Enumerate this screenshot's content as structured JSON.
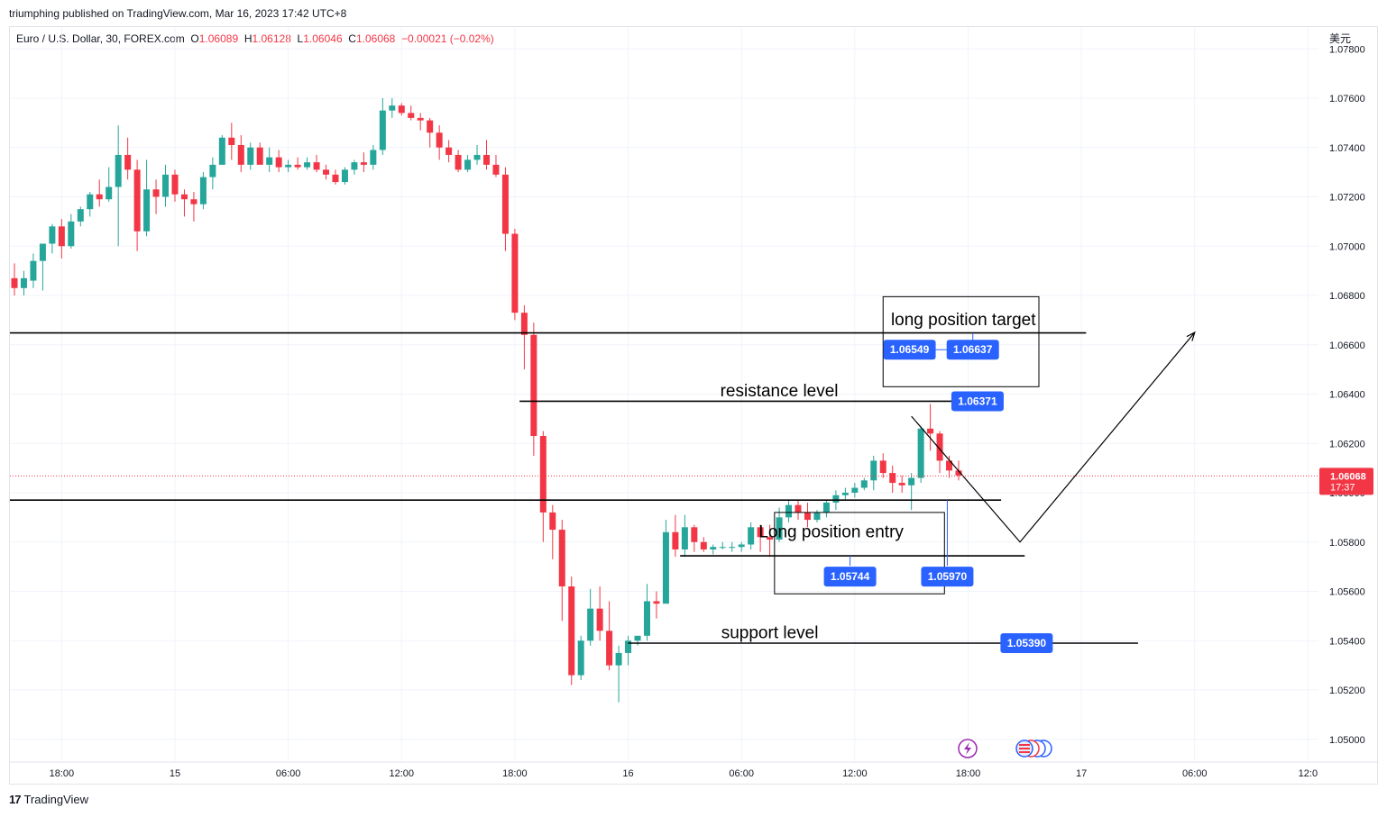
{
  "publisher_line": "triumphing published on TradingView.com, Mar 16, 2023 17:42 UTC+8",
  "legend": {
    "symbol": "Euro / U.S. Dollar, 30, FOREX.com",
    "open_label": "O",
    "open": "1.06089",
    "high_label": "H",
    "high": "1.06128",
    "low_label": "L",
    "low": "1.06046",
    "close_label": "C",
    "close": "1.06068",
    "change": "−0.00021 (−0.02%)"
  },
  "currency": "美元",
  "footer": {
    "brand": "TradingView",
    "logo_icon": "tradingview-logo-icon"
  },
  "colors": {
    "up": "#26a69a",
    "down": "#f23645",
    "label_bg": "#2962ff",
    "price_tag": "#f23645",
    "grid": "#f0f3fa",
    "axis_text": "#131722"
  },
  "chart_data": {
    "type": "candlestick",
    "symbol": "EURUSD",
    "interval": "30",
    "y_axis": {
      "range": [
        1.0494,
        1.0782
      ],
      "ticks": [
        "1.07800",
        "1.07600",
        "1.07400",
        "1.07200",
        "1.07000",
        "1.06800",
        "1.06600",
        "1.06400",
        "1.06200",
        "1.06000",
        "1.05800",
        "1.05600",
        "1.05400",
        "1.05200",
        "1.05000"
      ]
    },
    "x_axis": {
      "start_time": "14 15:30",
      "bar_minutes": 30,
      "tick_labels": [
        {
          "label": "18:00",
          "bar": 5
        },
        {
          "label": "15",
          "bar": 17
        },
        {
          "label": "06:00",
          "bar": 29
        },
        {
          "label": "12:00",
          "bar": 41
        },
        {
          "label": "18:00",
          "bar": 53
        },
        {
          "label": "16",
          "bar": 65
        },
        {
          "label": "06:00",
          "bar": 77
        },
        {
          "label": "12:00",
          "bar": 89
        },
        {
          "label": "18:00",
          "bar": 101
        },
        {
          "label": "17",
          "bar": 113
        },
        {
          "label": "06:00",
          "bar": 125
        },
        {
          "label": "12:0",
          "bar": 137
        }
      ]
    },
    "candles": [
      [
        1.0687,
        1.0693,
        1.068,
        1.0683
      ],
      [
        1.0683,
        1.069,
        1.068,
        1.0687
      ],
      [
        1.0686,
        1.0697,
        1.0683,
        1.0694
      ],
      [
        1.0694,
        1.07,
        1.0682,
        1.0701
      ],
      [
        1.0701,
        1.0709,
        1.0697,
        1.0708
      ],
      [
        1.0708,
        1.0711,
        1.0695,
        1.07
      ],
      [
        1.07,
        1.0713,
        1.0699,
        1.071
      ],
      [
        1.071,
        1.0716,
        1.0708,
        1.0715
      ],
      [
        1.0715,
        1.0722,
        1.0712,
        1.0721
      ],
      [
        1.0721,
        1.0727,
        1.0716,
        1.0719
      ],
      [
        1.0719,
        1.0732,
        1.0718,
        1.0724
      ],
      [
        1.0724,
        1.0749,
        1.07,
        1.0737
      ],
      [
        1.0737,
        1.0744,
        1.0727,
        1.0731
      ],
      [
        1.0731,
        1.0735,
        1.0698,
        1.0706
      ],
      [
        1.0706,
        1.0735,
        1.0704,
        1.0723
      ],
      [
        1.0723,
        1.0727,
        1.0713,
        1.072
      ],
      [
        1.072,
        1.0733,
        1.0716,
        1.0729
      ],
      [
        1.0729,
        1.0731,
        1.0718,
        1.0721
      ],
      [
        1.0721,
        1.0723,
        1.0712,
        1.0719
      ],
      [
        1.0719,
        1.0722,
        1.071,
        1.0717
      ],
      [
        1.0717,
        1.073,
        1.0715,
        1.0728
      ],
      [
        1.0728,
        1.0736,
        1.0723,
        1.0733
      ],
      [
        1.0733,
        1.0745,
        1.0733,
        1.0744
      ],
      [
        1.0744,
        1.075,
        1.0735,
        1.0741
      ],
      [
        1.0741,
        1.0745,
        1.073,
        1.0733
      ],
      [
        1.0733,
        1.0742,
        1.0731,
        1.074
      ],
      [
        1.074,
        1.0742,
        1.0733,
        1.0733
      ],
      [
        1.0733,
        1.074,
        1.073,
        1.0736
      ],
      [
        1.0736,
        1.0739,
        1.073,
        1.0732
      ],
      [
        1.0732,
        1.0735,
        1.073,
        1.0733
      ],
      [
        1.0733,
        1.0736,
        1.0731,
        1.0732
      ],
      [
        1.0732,
        1.0736,
        1.0731,
        1.0734
      ],
      [
        1.0734,
        1.0737,
        1.073,
        1.0731
      ],
      [
        1.0731,
        1.0733,
        1.0727,
        1.0729
      ],
      [
        1.0729,
        1.0731,
        1.0725,
        1.0726
      ],
      [
        1.0726,
        1.0732,
        1.0725,
        1.0731
      ],
      [
        1.0731,
        1.0735,
        1.0729,
        1.0734
      ],
      [
        1.0734,
        1.0738,
        1.073,
        1.0733
      ],
      [
        1.0733,
        1.0741,
        1.0731,
        1.0739
      ],
      [
        1.0739,
        1.076,
        1.0737,
        1.0755
      ],
      [
        1.0755,
        1.076,
        1.0752,
        1.0757
      ],
      [
        1.0757,
        1.0758,
        1.0753,
        1.0754
      ],
      [
        1.0754,
        1.0757,
        1.0751,
        1.0752
      ],
      [
        1.0752,
        1.0754,
        1.0747,
        1.0751
      ],
      [
        1.0751,
        1.0752,
        1.074,
        1.0746
      ],
      [
        1.0746,
        1.0749,
        1.0735,
        1.074
      ],
      [
        1.074,
        1.0743,
        1.0734,
        1.0737
      ],
      [
        1.0737,
        1.0739,
        1.073,
        1.0731
      ],
      [
        1.0731,
        1.0737,
        1.073,
        1.0735
      ],
      [
        1.0735,
        1.0741,
        1.0733,
        1.0737
      ],
      [
        1.0737,
        1.0743,
        1.0731,
        1.0733
      ],
      [
        1.0733,
        1.0737,
        1.0728,
        1.0729
      ],
      [
        1.0729,
        1.0732,
        1.0698,
        1.0705
      ],
      [
        1.0705,
        1.0707,
        1.067,
        1.0673
      ],
      [
        1.0673,
        1.0676,
        1.065,
        1.0664
      ],
      [
        1.0664,
        1.0669,
        1.0615,
        1.0623
      ],
      [
        1.0623,
        1.0625,
        1.058,
        1.0592
      ],
      [
        1.0592,
        1.0595,
        1.0573,
        1.0585
      ],
      [
        1.0585,
        1.0589,
        1.0548,
        1.0562
      ],
      [
        1.0562,
        1.0566,
        1.0522,
        1.0526
      ],
      [
        1.0526,
        1.0542,
        1.0524,
        1.054
      ],
      [
        1.054,
        1.0561,
        1.0538,
        1.0553
      ],
      [
        1.0553,
        1.0562,
        1.054,
        1.0544
      ],
      [
        1.0544,
        1.0556,
        1.0528,
        1.053
      ],
      [
        1.053,
        1.0538,
        1.0515,
        1.0535
      ],
      [
        1.0535,
        1.0542,
        1.053,
        1.054
      ],
      [
        1.054,
        1.0541,
        1.0538,
        1.0542
      ],
      [
        1.0542,
        1.0563,
        1.054,
        1.0556
      ],
      [
        1.0556,
        1.056,
        1.0549,
        1.0555
      ],
      [
        1.0555,
        1.0589,
        1.0555,
        1.0584
      ],
      [
        1.0584,
        1.0591,
        1.0574,
        1.0577
      ],
      [
        1.0577,
        1.0591,
        1.0574,
        1.0586
      ],
      [
        1.0586,
        1.0587,
        1.0576,
        1.058
      ],
      [
        1.058,
        1.0582,
        1.0576,
        1.0577
      ],
      [
        1.0577,
        1.0579,
        1.0575,
        1.0578
      ],
      [
        1.0578,
        1.058,
        1.0577,
        1.0578
      ],
      [
        1.0578,
        1.058,
        1.0576,
        1.0578
      ],
      [
        1.0578,
        1.058,
        1.0576,
        1.0579
      ],
      [
        1.0579,
        1.0588,
        1.0577,
        1.0586
      ],
      [
        1.0586,
        1.0587,
        1.0576,
        1.0582
      ],
      [
        1.0582,
        1.0587,
        1.0574,
        1.0581
      ],
      [
        1.0581,
        1.0594,
        1.058,
        1.059
      ],
      [
        1.059,
        1.0597,
        1.0588,
        1.0595
      ],
      [
        1.0595,
        1.0597,
        1.0589,
        1.0592
      ],
      [
        1.0592,
        1.0596,
        1.0586,
        1.0589
      ],
      [
        1.0589,
        1.0593,
        1.0588,
        1.0592
      ],
      [
        1.0592,
        1.0597,
        1.059,
        1.0596
      ],
      [
        1.0596,
        1.0601,
        1.0593,
        1.0599
      ],
      [
        1.0599,
        1.0602,
        1.0597,
        1.06
      ],
      [
        1.06,
        1.0604,
        1.0598,
        1.0602
      ],
      [
        1.0602,
        1.0606,
        1.0601,
        1.0605
      ],
      [
        1.0605,
        1.0615,
        1.0601,
        1.0613
      ],
      [
        1.0613,
        1.0616,
        1.0606,
        1.0608
      ],
      [
        1.0608,
        1.0611,
        1.06,
        1.0604
      ],
      [
        1.0604,
        1.0607,
        1.06,
        1.0603
      ],
      [
        1.0603,
        1.0608,
        1.0593,
        1.0606
      ],
      [
        1.0606,
        1.0627,
        1.0604,
        1.0626
      ],
      [
        1.0626,
        1.0636,
        1.0617,
        1.0624
      ],
      [
        1.0624,
        1.0625,
        1.0608,
        1.0613
      ],
      [
        1.0613,
        1.0615,
        1.0606,
        1.0609
      ],
      [
        1.0609,
        1.0613,
        1.0605,
        1.0607
      ]
    ],
    "last_price": {
      "value": "1.06068",
      "countdown": "17:37"
    },
    "horizontal_lines": [
      {
        "y": 1.06648,
        "x_from": 0,
        "x_to": 113.5
      },
      {
        "y": 1.06371,
        "x_from": 53.5,
        "x_to": 104
      },
      {
        "y": 1.0597,
        "x_from": 0,
        "x_to": 104.5
      },
      {
        "y": 1.05744,
        "x_from": 70.5,
        "x_to": 107
      },
      {
        "y": 1.0539,
        "x_from": 65,
        "x_to": 119
      }
    ],
    "path_projection": [
      {
        "x": 95,
        "y": 1.0631
      },
      {
        "x": 106.5,
        "y": 1.058
      },
      {
        "x": 125,
        "y": 1.0665
      }
    ],
    "annotations": [
      {
        "text": "resistance level",
        "x": 81,
        "y": 1.0639
      },
      {
        "text": "support level",
        "x": 80,
        "y": 1.0541
      },
      {
        "text": "long position target",
        "x": 100.5,
        "y": 1.0668
      },
      {
        "text": "Long position entry",
        "x": 86.5,
        "y": 1.0582
      }
    ],
    "boxes": [
      {
        "x0": 92,
        "x1": 108.5,
        "y0": 1.06795,
        "y1": 1.0643
      },
      {
        "x0": 80.5,
        "x1": 98.5,
        "y0": 1.0592,
        "y1": 1.0559
      }
    ],
    "price_labels": [
      {
        "text": "1.06549",
        "x": 94.8,
        "y": 1.0658
      },
      {
        "text": "1.06637",
        "x": 101.5,
        "y": 1.0658
      },
      {
        "text": "1.06371",
        "x": 102,
        "y": 1.06371
      },
      {
        "text": "1.05744",
        "x": 88.5,
        "y": 1.0566
      },
      {
        "text": "1.05970",
        "x": 98.8,
        "y": 1.0566
      },
      {
        "text": "1.05390",
        "x": 107.2,
        "y": 1.0539
      }
    ]
  }
}
